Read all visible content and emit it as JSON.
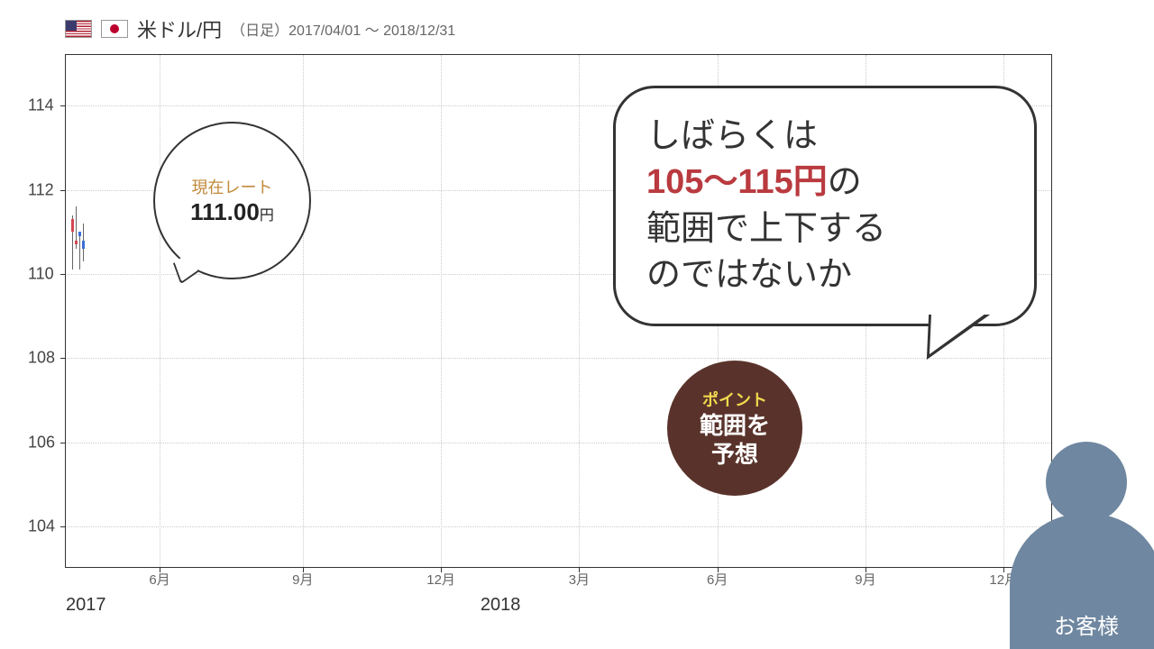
{
  "header": {
    "pair": "米ドル/円",
    "timeframe": "（日足）",
    "range": "2017/04/01 ～ 2018/12/31"
  },
  "chart": {
    "ylim": [
      103,
      115.2
    ],
    "yticks": [
      104,
      106,
      108,
      110,
      112,
      114
    ],
    "xticks": [
      {
        "x_pct": 9.5,
        "label": "6月"
      },
      {
        "x_pct": 24,
        "label": "9月"
      },
      {
        "x_pct": 38,
        "label": "12月"
      },
      {
        "x_pct": 52,
        "label": "3月"
      },
      {
        "x_pct": 66,
        "label": "6月"
      },
      {
        "x_pct": 81,
        "label": "9月"
      },
      {
        "x_pct": 95,
        "label": "12月"
      }
    ],
    "year_labels": [
      {
        "x_pct": 0,
        "text": "2017"
      },
      {
        "x_pct": 42,
        "text": "2018"
      }
    ],
    "candles": [
      {
        "x": 6,
        "high": 111.4,
        "low": 110.1,
        "open": 111.3,
        "close": 111.0,
        "up": false
      },
      {
        "x": 10,
        "high": 111.6,
        "low": 110.6,
        "open": 110.8,
        "close": 110.7,
        "up": false
      },
      {
        "x": 14,
        "high": 111.0,
        "low": 110.1,
        "open": 110.9,
        "close": 111.0,
        "up": true
      },
      {
        "x": 18,
        "high": 111.2,
        "low": 110.3,
        "open": 110.6,
        "close": 110.8,
        "up": true
      }
    ],
    "colors": {
      "up": "#3a6fd8",
      "down": "#d64550",
      "grid": "#cccccc",
      "axis": "#333333"
    }
  },
  "rate_bubble": {
    "label": "現在レート",
    "value": "111.00",
    "unit": "円",
    "label_color": "#c08a3a"
  },
  "big_bubble": {
    "line1": "しばらくは",
    "highlight": "105～115円",
    "line2_suffix": "の",
    "line3": "範囲で上下する",
    "line4": "のではないか",
    "highlight_color": "#b93a3f"
  },
  "point_badge": {
    "label": "ポイント",
    "text1": "範囲を",
    "text2": "予想",
    "bg": "#59332b",
    "label_color": "#f2d94e"
  },
  "customer": {
    "label": "お客様",
    "color": "#6f87a0"
  }
}
